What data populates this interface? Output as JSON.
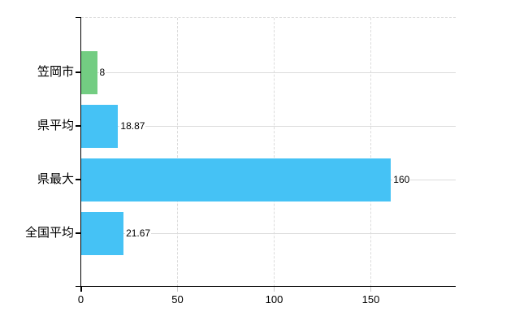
{
  "chart_data": {
    "type": "bar",
    "orientation": "horizontal",
    "title": "",
    "xlabel": "",
    "ylabel": "",
    "categories": [
      "笠岡市",
      "県平均",
      "県最大",
      "全国平均"
    ],
    "values": [
      8,
      18.87,
      160,
      21.67
    ],
    "value_labels": [
      "8",
      "18.87",
      "160",
      "21.67"
    ],
    "bar_colors": [
      "#73CD82",
      "#45C2F5",
      "#45C2F5",
      "#45C2F5"
    ],
    "x_ticks": [
      "0",
      "50",
      "100",
      "150"
    ],
    "x_tick_values": [
      0,
      50,
      100,
      150
    ],
    "xlim": [
      0,
      193
    ],
    "grid": true,
    "legend": false,
    "colors": {
      "bar_green": "#73CD82",
      "bar_blue": "#45C2F5",
      "gridline": "#dcdcdc",
      "axis": "#000000",
      "minor_tick": "#c9c9c9",
      "text": "#000000",
      "background": "#ffffff"
    }
  }
}
